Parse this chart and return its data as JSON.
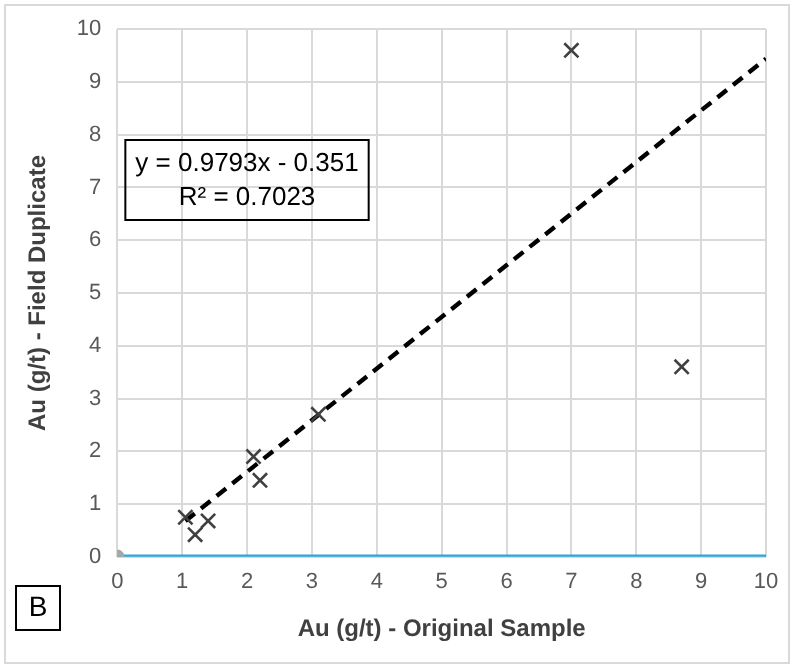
{
  "chart_data": {
    "type": "scatter",
    "xlabel": "Au (g/t) - Original Sample",
    "ylabel": "Au (g/t) - Field Duplicate",
    "xlim": [
      0,
      10
    ],
    "ylim": [
      0,
      10
    ],
    "xticks": [
      0,
      1,
      2,
      3,
      4,
      5,
      6,
      7,
      8,
      9,
      10
    ],
    "yticks": [
      0,
      1,
      2,
      3,
      4,
      5,
      6,
      7,
      8,
      9,
      10
    ],
    "grid": true,
    "marker": "cross",
    "series": [
      {
        "color": "#404040",
        "x": [
          1.05,
          1.2,
          1.4,
          2.1,
          2.2,
          3.1,
          7.0,
          8.7
        ],
        "values": [
          0.75,
          0.42,
          0.68,
          1.9,
          1.45,
          2.7,
          9.6,
          3.6
        ]
      },
      {
        "type": "line",
        "color": "#000000",
        "line_style": "dashed",
        "marker": "none",
        "x": [
          1.05,
          10
        ],
        "values": [
          0.68,
          9.44
        ]
      },
      {
        "type": "line",
        "color": "#29a8e0",
        "line_style": "solid",
        "marker": "none",
        "x": [
          0,
          10
        ],
        "values": [
          0,
          0
        ]
      },
      {
        "color": "#a6a6a6",
        "marker": "circle",
        "x": [
          0
        ],
        "values": [
          0
        ]
      }
    ],
    "annotations": [
      "y = 0.9793x - 0.351",
      "R² = 0.7023",
      "B"
    ]
  }
}
